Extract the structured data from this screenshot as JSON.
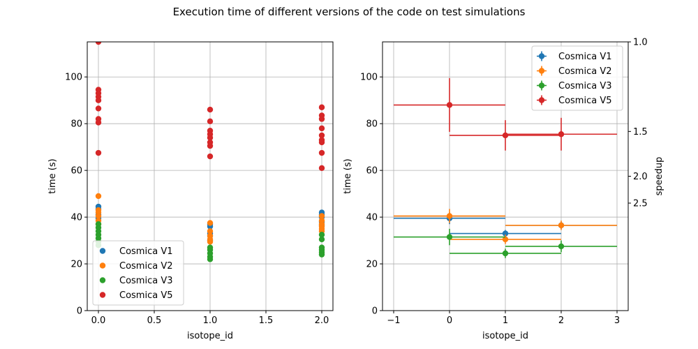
{
  "figure": {
    "title": "Execution time of different versions of the code on test simulations"
  },
  "chart_data": [
    {
      "type": "scatter",
      "xlabel": "isotope_id",
      "ylabel": "time (s)",
      "xlim": [
        -0.1,
        2.1
      ],
      "ylim": [
        0,
        115
      ],
      "xticks": [
        0.0,
        0.5,
        1.0,
        1.5,
        2.0
      ],
      "xtick_labels": [
        "0.0",
        "0.5",
        "1.0",
        "1.5",
        "2.0"
      ],
      "yticks": [
        0,
        20,
        40,
        60,
        80,
        100
      ],
      "ytick_labels": [
        "0",
        "20",
        "40",
        "60",
        "80",
        "100"
      ],
      "grid": true,
      "legend": "lower-left",
      "series": [
        {
          "name": "Cosmica V1",
          "color": "#1f77b4",
          "points": [
            [
              0,
              44.5
            ],
            [
              0,
              43.5
            ],
            [
              0,
              41
            ],
            [
              0,
              39.5
            ],
            [
              1,
              37
            ],
            [
              1,
              36
            ],
            [
              1,
              33
            ],
            [
              1,
              32
            ],
            [
              1,
              30
            ],
            [
              2,
              42
            ],
            [
              2,
              41
            ],
            [
              2,
              40
            ],
            [
              2,
              38
            ],
            [
              2,
              36.5
            ]
          ]
        },
        {
          "name": "Cosmica V2",
          "color": "#ff7f0e",
          "points": [
            [
              0,
              49
            ],
            [
              0,
              43
            ],
            [
              0,
              42
            ],
            [
              0,
              40.5
            ],
            [
              0,
              38.5
            ],
            [
              0,
              37
            ],
            [
              1,
              37.5
            ],
            [
              1,
              34
            ],
            [
              1,
              32
            ],
            [
              1,
              30.5
            ],
            [
              1,
              29.5
            ],
            [
              2,
              40.5
            ],
            [
              2,
              38.5
            ],
            [
              2,
              37
            ],
            [
              2,
              36
            ],
            [
              2,
              35
            ],
            [
              2,
              34
            ]
          ]
        },
        {
          "name": "Cosmica V3",
          "color": "#2ca02c",
          "points": [
            [
              0,
              37
            ],
            [
              0,
              35.5
            ],
            [
              0,
              34
            ],
            [
              0,
              32.5
            ],
            [
              0,
              31
            ],
            [
              0,
              29.5
            ],
            [
              0,
              28
            ],
            [
              1,
              27
            ],
            [
              1,
              26
            ],
            [
              1,
              24.5
            ],
            [
              1,
              23
            ],
            [
              1,
              22
            ],
            [
              2,
              32.5
            ],
            [
              2,
              30.5
            ],
            [
              2,
              27
            ],
            [
              2,
              26
            ],
            [
              2,
              25
            ],
            [
              2,
              24
            ]
          ]
        },
        {
          "name": "Cosmica V5",
          "color": "#d62728",
          "points": [
            [
              0,
              115
            ],
            [
              0,
              94.5
            ],
            [
              0,
              93
            ],
            [
              0,
              91.5
            ],
            [
              0,
              90
            ],
            [
              0,
              86.5
            ],
            [
              0,
              82
            ],
            [
              0,
              80.5
            ],
            [
              0,
              67.5
            ],
            [
              1,
              86
            ],
            [
              1,
              81
            ],
            [
              1,
              77
            ],
            [
              1,
              75.5
            ],
            [
              1,
              74
            ],
            [
              1,
              72
            ],
            [
              1,
              70.5
            ],
            [
              1,
              66
            ],
            [
              2,
              87
            ],
            [
              2,
              83.5
            ],
            [
              2,
              82
            ],
            [
              2,
              78
            ],
            [
              2,
              75
            ],
            [
              2,
              73
            ],
            [
              2,
              72
            ],
            [
              2,
              67.5
            ],
            [
              2,
              61
            ]
          ]
        }
      ]
    },
    {
      "type": "errorbar",
      "xlabel": "isotope_id",
      "ylabel": "time (s)",
      "y2label": "speedup",
      "xlim": [
        -1.2,
        3.2
      ],
      "ylim": [
        0,
        115
      ],
      "xticks": [
        -1,
        0,
        1,
        2,
        3
      ],
      "xtick_labels": [
        "−1",
        "0",
        "1",
        "2",
        "3"
      ],
      "yticks": [
        0,
        20,
        40,
        60,
        80,
        100
      ],
      "ytick_labels": [
        "0",
        "20",
        "40",
        "60",
        "80",
        "100"
      ],
      "y2_reference_time": 115,
      "y2ticks": [
        1.0,
        1.5,
        2.0,
        2.5
      ],
      "y2tick_labels": [
        "1.0",
        "1.5",
        "2.0",
        "2.5"
      ],
      "grid": true,
      "legend": "top-right",
      "series": [
        {
          "name": "Cosmica V1",
          "color": "#1f77b4",
          "points": [
            {
              "x": 0,
              "y": 39.5,
              "xerr": 1,
              "yerr": 2.5
            },
            {
              "x": 1,
              "y": 33,
              "xerr": 1,
              "yerr": 1.5
            },
            {
              "x": 2,
              "y": 36.5,
              "xerr": 1,
              "yerr": 1.5
            }
          ]
        },
        {
          "name": "Cosmica V2",
          "color": "#ff7f0e",
          "points": [
            {
              "x": 0,
              "y": 40.5,
              "xerr": 1,
              "yerr": 3
            },
            {
              "x": 1,
              "y": 30.5,
              "xerr": 1,
              "yerr": 2
            },
            {
              "x": 2,
              "y": 36.5,
              "xerr": 1,
              "yerr": 2
            }
          ]
        },
        {
          "name": "Cosmica V3",
          "color": "#2ca02c",
          "points": [
            {
              "x": 0,
              "y": 31.5,
              "xerr": 1,
              "yerr": 3.5
            },
            {
              "x": 1,
              "y": 24.5,
              "xerr": 1,
              "yerr": 2
            },
            {
              "x": 2,
              "y": 27.5,
              "xerr": 1,
              "yerr": 2.5
            }
          ]
        },
        {
          "name": "Cosmica V5",
          "color": "#d62728",
          "points": [
            {
              "x": 0,
              "y": 88,
              "xerr": 1,
              "yerr": 11.5
            },
            {
              "x": 1,
              "y": 75,
              "xerr": 1,
              "yerr": 6.5
            },
            {
              "x": 2,
              "y": 75.5,
              "xerr": 1,
              "yerr": 7
            }
          ]
        }
      ]
    }
  ]
}
